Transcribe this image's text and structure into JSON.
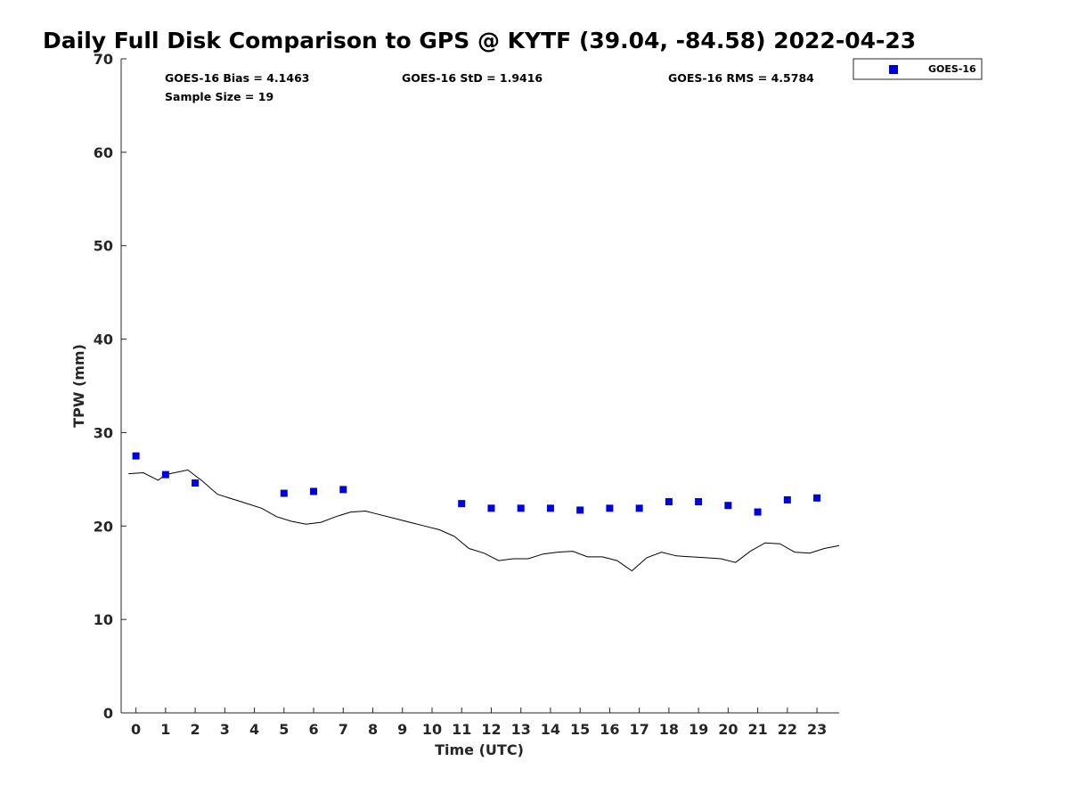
{
  "chart_data": {
    "type": "scatter",
    "title": "Daily Full Disk Comparison to GPS @ KYTF (39.04, -84.58) 2022-04-23",
    "xlabel": "Time (UTC)",
    "ylabel": "TPW (mm)",
    "xlim": [
      -0.5,
      23.75
    ],
    "ylim": [
      0,
      70
    ],
    "x_ticks": [
      "0",
      "1",
      "2",
      "3",
      "4",
      "5",
      "6",
      "7",
      "8",
      "9",
      "10",
      "11",
      "12",
      "13",
      "14",
      "15",
      "16",
      "17",
      "18",
      "19",
      "20",
      "21",
      "22",
      "23"
    ],
    "y_ticks": [
      "0",
      "10",
      "20",
      "30",
      "40",
      "50",
      "60",
      "70"
    ],
    "grid": false,
    "legend_position": "outside top-right",
    "stats": {
      "bias": "GOES-16 Bias = 4.1463",
      "std": "GOES-16 StD = 1.9416",
      "rms": "GOES-16 RMS = 4.5784",
      "sample": "Sample Size = 19"
    },
    "series": [
      {
        "name": "GOES-16",
        "style": "marker",
        "color": "#0000dd",
        "points": [
          [
            0.0,
            27.5
          ],
          [
            1.0,
            25.5
          ],
          [
            2.0,
            24.6
          ],
          [
            5.0,
            23.5
          ],
          [
            6.0,
            23.7
          ],
          [
            7.0,
            23.9
          ],
          [
            11.0,
            22.4
          ],
          [
            12.0,
            21.9
          ],
          [
            13.0,
            21.9
          ],
          [
            14.0,
            21.9
          ],
          [
            15.0,
            21.7
          ],
          [
            16.0,
            21.9
          ],
          [
            17.0,
            21.9
          ],
          [
            18.0,
            22.6
          ],
          [
            19.0,
            22.6
          ],
          [
            20.0,
            22.2
          ],
          [
            21.0,
            21.5
          ],
          [
            22.0,
            22.8
          ],
          [
            23.0,
            23.0
          ]
        ]
      },
      {
        "style": "line",
        "color": "#000000",
        "points": [
          [
            -0.25,
            25.6
          ],
          [
            0.25,
            25.7
          ],
          [
            0.75,
            24.9
          ],
          [
            1.0,
            25.5
          ],
          [
            1.75,
            26.0
          ],
          [
            2.25,
            24.8
          ],
          [
            2.75,
            23.4
          ],
          [
            3.25,
            22.9
          ],
          [
            3.75,
            22.4
          ],
          [
            4.25,
            21.9
          ],
          [
            4.75,
            21.0
          ],
          [
            5.25,
            20.5
          ],
          [
            5.75,
            20.2
          ],
          [
            6.25,
            20.4
          ],
          [
            6.75,
            21.0
          ],
          [
            7.25,
            21.5
          ],
          [
            7.75,
            21.6
          ],
          [
            8.25,
            21.2
          ],
          [
            8.75,
            20.8
          ],
          [
            9.25,
            20.4
          ],
          [
            9.75,
            20.0
          ],
          [
            10.25,
            19.6
          ],
          [
            10.75,
            18.9
          ],
          [
            11.25,
            17.6
          ],
          [
            11.75,
            17.1
          ],
          [
            12.25,
            16.3
          ],
          [
            12.75,
            16.5
          ],
          [
            13.25,
            16.5
          ],
          [
            13.75,
            17.0
          ],
          [
            14.25,
            17.2
          ],
          [
            14.75,
            17.3
          ],
          [
            15.25,
            16.7
          ],
          [
            15.75,
            16.7
          ],
          [
            16.25,
            16.3
          ],
          [
            16.75,
            15.2
          ],
          [
            17.25,
            16.6
          ],
          [
            17.75,
            17.2
          ],
          [
            18.25,
            16.8
          ],
          [
            18.75,
            16.7
          ],
          [
            19.25,
            16.6
          ],
          [
            19.75,
            16.5
          ],
          [
            20.25,
            16.1
          ],
          [
            20.75,
            17.3
          ],
          [
            21.25,
            18.2
          ],
          [
            21.75,
            18.1
          ],
          [
            22.25,
            17.2
          ],
          [
            22.75,
            17.1
          ],
          [
            23.25,
            17.6
          ],
          [
            23.75,
            17.9
          ]
        ]
      }
    ]
  }
}
